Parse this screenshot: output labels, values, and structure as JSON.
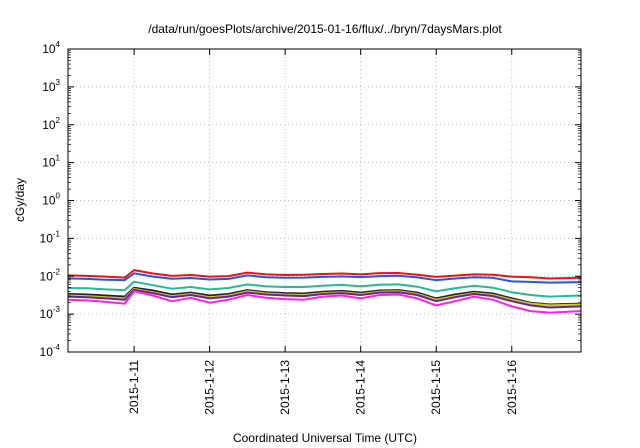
{
  "chart_data": {
    "type": "line",
    "title": "/data/run/goesPlots/archive/2015-01-16/flux/../bryn/7daysMars.plot",
    "xlabel": "Coordinated Universal Time (UTC)",
    "ylabel": "cGy/day",
    "y_scale": "log",
    "ylim": [
      0.0001,
      10000
    ],
    "y_ticks": [
      {
        "value": 0.0001,
        "base": "10",
        "exp": "-4"
      },
      {
        "value": 0.001,
        "base": "10",
        "exp": "-3"
      },
      {
        "value": 0.01,
        "base": "10",
        "exp": "-2"
      },
      {
        "value": 0.1,
        "base": "10",
        "exp": "-1"
      },
      {
        "value": 1,
        "base": "10",
        "exp": "0"
      },
      {
        "value": 10,
        "base": "10",
        "exp": "1"
      },
      {
        "value": 100,
        "base": "10",
        "exp": "2"
      },
      {
        "value": 1000,
        "base": "10",
        "exp": "3"
      },
      {
        "value": 10000,
        "base": "10",
        "exp": "4"
      }
    ],
    "xlim": [
      "2015-01-10T03:00",
      "2015-01-16T22:00"
    ],
    "x_ticks": [
      "2015-1-11",
      "2015-1-12",
      "2015-1-13",
      "2015-1-14",
      "2015-1-15",
      "2015-1-16"
    ],
    "x_tick_dates": [
      "2015-01-11T00:00",
      "2015-01-12T00:00",
      "2015-01-13T00:00",
      "2015-01-14T00:00",
      "2015-01-15T00:00",
      "2015-01-16T00:00"
    ],
    "grid": true,
    "x": [
      "2015-01-10T03:00",
      "2015-01-10T09:00",
      "2015-01-10T15:00",
      "2015-01-10T21:00",
      "2015-01-11T00:00",
      "2015-01-11T06:00",
      "2015-01-11T12:00",
      "2015-01-11T18:00",
      "2015-01-12T00:00",
      "2015-01-12T06:00",
      "2015-01-12T12:00",
      "2015-01-12T18:00",
      "2015-01-13T00:00",
      "2015-01-13T06:00",
      "2015-01-13T12:00",
      "2015-01-13T18:00",
      "2015-01-14T00:00",
      "2015-01-14T06:00",
      "2015-01-14T12:00",
      "2015-01-14T18:00",
      "2015-01-15T00:00",
      "2015-01-15T06:00",
      "2015-01-15T12:00",
      "2015-01-15T18:00",
      "2015-01-16T00:00",
      "2015-01-16T06:00",
      "2015-01-16T12:00",
      "2015-01-16T22:00"
    ],
    "series": [
      {
        "color": "#ee1111",
        "values": [
          0.0105,
          0.0102,
          0.0098,
          0.0092,
          0.0145,
          0.0118,
          0.0102,
          0.0108,
          0.0098,
          0.0101,
          0.0125,
          0.0112,
          0.0108,
          0.0109,
          0.0115,
          0.0118,
          0.0112,
          0.0121,
          0.0122,
          0.0109,
          0.0096,
          0.0104,
          0.0112,
          0.0109,
          0.0098,
          0.0094,
          0.0087,
          0.0091
        ]
      },
      {
        "color": "#2255ee",
        "values": [
          0.0088,
          0.0085,
          0.0081,
          0.0079,
          0.012,
          0.0098,
          0.0086,
          0.009,
          0.0082,
          0.0085,
          0.0105,
          0.0094,
          0.0091,
          0.0092,
          0.0096,
          0.0099,
          0.0095,
          0.0101,
          0.0103,
          0.0093,
          0.0079,
          0.0087,
          0.0094,
          0.0091,
          0.0073,
          0.0071,
          0.0068,
          0.007
        ]
      },
      {
        "color": "#22bb99",
        "values": [
          0.0049,
          0.0048,
          0.0045,
          0.0043,
          0.0072,
          0.0058,
          0.0047,
          0.0052,
          0.0045,
          0.0049,
          0.0061,
          0.0054,
          0.0052,
          0.0052,
          0.0056,
          0.0059,
          0.0054,
          0.006,
          0.0061,
          0.0053,
          0.004,
          0.0048,
          0.0056,
          0.005,
          0.0038,
          0.0032,
          0.0029,
          0.0031
        ]
      },
      {
        "color": "#222222",
        "values": [
          0.0034,
          0.0033,
          0.0031,
          0.0029,
          0.005,
          0.0042,
          0.0033,
          0.0037,
          0.0031,
          0.0034,
          0.0043,
          0.0038,
          0.0036,
          0.0035,
          0.0039,
          0.0041,
          0.0037,
          0.0042,
          0.0043,
          0.0037,
          0.0026,
          0.0033,
          0.0039,
          0.0035,
          0.0026,
          0.002,
          0.0018,
          0.0019
        ]
      },
      {
        "color": "#cccc22",
        "values": [
          0.0031,
          0.003,
          0.0028,
          0.0026,
          0.0046,
          0.0038,
          0.003,
          0.0034,
          0.0028,
          0.0031,
          0.004,
          0.0035,
          0.0033,
          0.0032,
          0.0036,
          0.0038,
          0.0034,
          0.0039,
          0.004,
          0.0034,
          0.0024,
          0.003,
          0.0036,
          0.0032,
          0.0024,
          0.0019,
          0.0017,
          0.0018
        ]
      },
      {
        "color": "#6a2299",
        "values": [
          0.0029,
          0.0028,
          0.0026,
          0.0024,
          0.0044,
          0.0036,
          0.0028,
          0.0032,
          0.0026,
          0.0029,
          0.0037,
          0.0033,
          0.0031,
          0.003,
          0.0034,
          0.0036,
          0.0032,
          0.0037,
          0.0038,
          0.0032,
          0.0022,
          0.0028,
          0.0034,
          0.003,
          0.0022,
          0.0017,
          0.0015,
          0.0016
        ]
      },
      {
        "color": "#ff22dd",
        "values": [
          0.0024,
          0.0023,
          0.0021,
          0.0019,
          0.004,
          0.0031,
          0.0022,
          0.0027,
          0.002,
          0.0024,
          0.0032,
          0.0027,
          0.0025,
          0.0024,
          0.0029,
          0.0031,
          0.0026,
          0.0032,
          0.0033,
          0.0026,
          0.0017,
          0.0022,
          0.0029,
          0.0024,
          0.0016,
          0.0012,
          0.0011,
          0.0012
        ]
      }
    ]
  }
}
